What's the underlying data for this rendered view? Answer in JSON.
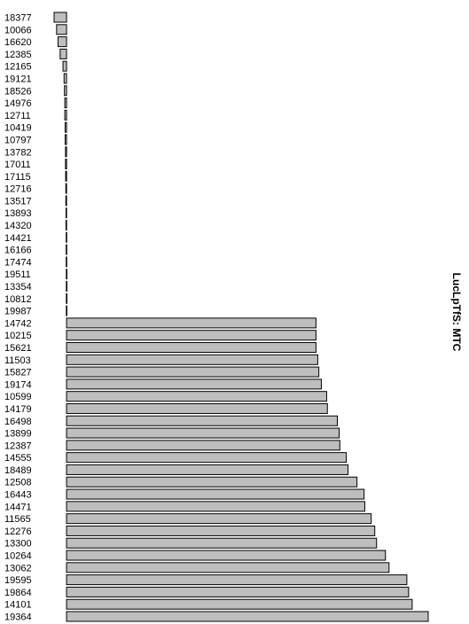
{
  "chart_data": {
    "type": "bar",
    "orientation": "horizontal",
    "side_label": "LucLpTfS: MTC",
    "categories": [
      "18377",
      "10066",
      "16620",
      "12385",
      "12165",
      "19121",
      "18526",
      "14976",
      "12711",
      "10419",
      "10797",
      "13782",
      "17011",
      "17115",
      "12716",
      "13517",
      "13893",
      "14320",
      "14421",
      "16166",
      "17474",
      "19511",
      "13354",
      "10812",
      "19987",
      "14742",
      "10215",
      "15621",
      "11503",
      "15827",
      "19174",
      "10599",
      "14179",
      "16498",
      "13899",
      "12387",
      "14555",
      "18489",
      "12508",
      "16443",
      "14471",
      "11565",
      "12276",
      "13300",
      "10264",
      "13062",
      "19595",
      "19864",
      "14101",
      "19364"
    ],
    "values": [
      -3.5,
      -2.8,
      -2.4,
      -1.8,
      -1.0,
      -0.7,
      -0.6,
      -0.5,
      -0.5,
      -0.4,
      -0.4,
      -0.3,
      -0.3,
      -0.25,
      -0.2,
      -0.2,
      -0.15,
      -0.15,
      -0.1,
      -0.1,
      -0.1,
      -0.05,
      -0.05,
      -0.05,
      -0.05,
      70,
      70,
      70,
      70.5,
      70.8,
      71.5,
      73,
      73.2,
      76,
      76.5,
      76.7,
      78.5,
      79,
      81.5,
      83.5,
      83.7,
      85.5,
      86.5,
      87,
      89.5,
      90.5,
      95.5,
      96,
      97,
      101.5
    ],
    "xlim": [
      -4,
      102
    ],
    "bar_color": "#bebebe",
    "axes_visible": false,
    "grid": false,
    "legend": "none"
  }
}
